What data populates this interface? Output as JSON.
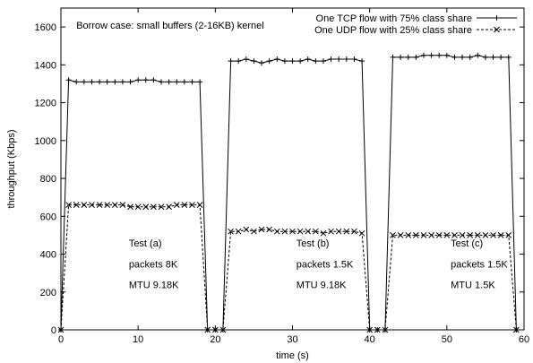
{
  "chart_data": {
    "type": "line",
    "title": "",
    "xlabel": "time (s)",
    "ylabel": "throughput (Kbps)",
    "xlim": [
      0,
      60
    ],
    "ylim": [
      0,
      1700
    ],
    "xticks": [
      0,
      10,
      20,
      30,
      40,
      50,
      60
    ],
    "yticks": [
      0,
      200,
      400,
      600,
      800,
      1000,
      1200,
      1400,
      1600
    ],
    "grid": false,
    "legend_position": "top-right",
    "annotations": [
      {
        "text": "Borrow case: small buffers (2-16KB) kernel",
        "x": 2,
        "y": 1590
      },
      {
        "text": "Test (a)",
        "x": 8.8,
        "y": 440
      },
      {
        "text": "packets 8K",
        "x": 8.8,
        "y": 330
      },
      {
        "text": "MTU 9.18K",
        "x": 8.8,
        "y": 220
      },
      {
        "text": "Test (b)",
        "x": 30.5,
        "y": 440
      },
      {
        "text": "packets 1.5K",
        "x": 30.5,
        "y": 330
      },
      {
        "text": "MTU 9.18K",
        "x": 30.5,
        "y": 220
      },
      {
        "text": "Test (c)",
        "x": 50.5,
        "y": 440
      },
      {
        "text": "packets 1.5K",
        "x": 50.5,
        "y": 330
      },
      {
        "text": "MTU 1.5K",
        "x": 50.5,
        "y": 220
      }
    ],
    "series": [
      {
        "name": "One TCP flow with 75% class share",
        "color": "#000000",
        "line_style": "solid",
        "marker": "plus",
        "x": [
          0,
          1,
          2,
          3,
          4,
          5,
          6,
          7,
          8,
          9,
          10,
          11,
          12,
          13,
          14,
          15,
          16,
          17,
          18,
          19,
          20,
          21,
          22,
          23,
          24,
          25,
          26,
          27,
          28,
          29,
          30,
          31,
          32,
          33,
          34,
          35,
          36,
          37,
          38,
          39,
          40,
          41,
          42,
          43,
          44,
          45,
          46,
          47,
          48,
          49,
          50,
          51,
          52,
          53,
          54,
          55,
          56,
          57,
          58,
          59
        ],
        "y": [
          0,
          1320,
          1310,
          1310,
          1310,
          1310,
          1310,
          1310,
          1310,
          1310,
          1320,
          1320,
          1320,
          1310,
          1310,
          1310,
          1310,
          1310,
          1310,
          0,
          0,
          0,
          1420,
          1420,
          1430,
          1420,
          1410,
          1420,
          1430,
          1420,
          1420,
          1420,
          1430,
          1420,
          1420,
          1430,
          1430,
          1430,
          1430,
          1420,
          0,
          0,
          0,
          1440,
          1440,
          1440,
          1440,
          1450,
          1450,
          1450,
          1450,
          1440,
          1440,
          1440,
          1450,
          1440,
          1440,
          1440,
          1440,
          0
        ]
      },
      {
        "name": "One UDP flow with 25% class share",
        "color": "#000000",
        "line_style": "dashed",
        "marker": "cross",
        "x": [
          0,
          1,
          2,
          3,
          4,
          5,
          6,
          7,
          8,
          9,
          10,
          11,
          12,
          13,
          14,
          15,
          16,
          17,
          18,
          19,
          20,
          21,
          22,
          23,
          24,
          25,
          26,
          27,
          28,
          29,
          30,
          31,
          32,
          33,
          34,
          35,
          36,
          37,
          38,
          39,
          40,
          41,
          42,
          43,
          44,
          45,
          46,
          47,
          48,
          49,
          50,
          51,
          52,
          53,
          54,
          55,
          56,
          57,
          58,
          59
        ],
        "y": [
          0,
          660,
          660,
          660,
          660,
          660,
          660,
          660,
          660,
          650,
          650,
          650,
          650,
          650,
          650,
          660,
          660,
          660,
          660,
          0,
          0,
          0,
          520,
          520,
          530,
          520,
          530,
          530,
          520,
          520,
          520,
          520,
          520,
          520,
          510,
          520,
          520,
          520,
          520,
          510,
          0,
          0,
          0,
          500,
          500,
          500,
          500,
          500,
          500,
          500,
          500,
          500,
          500,
          500,
          500,
          500,
          500,
          500,
          500,
          0
        ]
      }
    ]
  }
}
